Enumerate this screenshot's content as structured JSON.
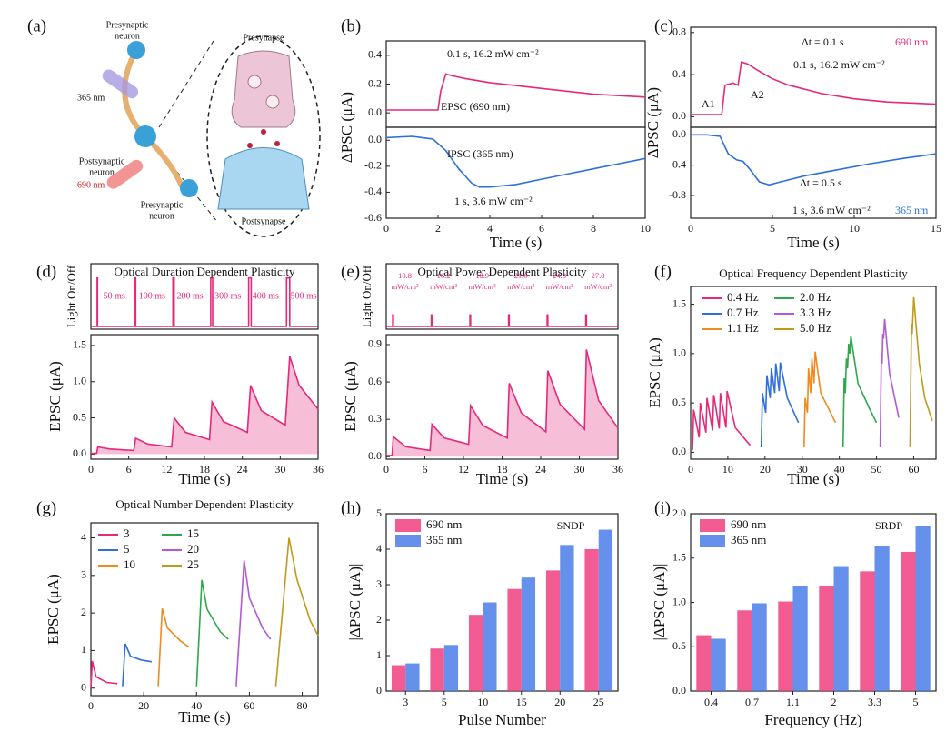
{
  "diagram": {
    "panel": "(a)",
    "labels": [
      "Presynaptic",
      "neuron",
      "365 nm",
      "Postsynaptic",
      "neuron",
      "690 nm",
      "Presynaptic",
      "neuron",
      "Presynapse",
      "Postsynapse"
    ]
  },
  "chart_data": [
    {
      "type": "line",
      "panel": "(b)",
      "y_label": "ΔPSC (μA)",
      "xlim": [
        0,
        10
      ],
      "ylim": [
        -0.1,
        0.5
      ],
      "yticks": [
        {
          "value": 0,
          "label": "0.0"
        },
        0.2,
        0.4
      ],
      "annotations": [
        "0.1 s, 16.2 mW cm⁻²",
        "EPSC (690 nm)"
      ],
      "series": [
        {
          "color": "#e6287a",
          "x": [
            0,
            1,
            2,
            2.1,
            2.3,
            2.5,
            3,
            4,
            5,
            6,
            7,
            8,
            9,
            10
          ],
          "values": [
            0.02,
            0.02,
            0.02,
            0.15,
            0.27,
            0.26,
            0.24,
            0.21,
            0.19,
            0.17,
            0.15,
            0.13,
            0.12,
            0.11
          ]
        }
      ]
    },
    {
      "type": "line",
      "x_label": "Time (s)",
      "xlim": [
        0,
        10
      ],
      "ylim": [
        -0.6,
        0.1
      ],
      "xticks": [
        0,
        2,
        4,
        6,
        8,
        10
      ],
      "yticks": [
        {
          "value": 0,
          "label": "0.0"
        },
        -0.2,
        -0.4,
        -0.6
      ],
      "annotations": [
        "IPSC (365 nm)",
        "1 s, 3.6 mW cm⁻²"
      ],
      "series": [
        {
          "color": "#2f6fdc",
          "x": [
            0,
            1,
            1.8,
            2.3,
            2.8,
            3.3,
            3.6,
            4,
            5,
            6,
            7,
            8,
            9,
            10
          ],
          "values": [
            0.02,
            0.03,
            0.01,
            -0.08,
            -0.22,
            -0.33,
            -0.36,
            -0.36,
            -0.34,
            -0.3,
            -0.26,
            -0.22,
            -0.18,
            -0.14
          ]
        }
      ]
    },
    {
      "type": "line",
      "panel": "(c)",
      "y_label": "ΔPSC (μA)",
      "xlim": [
        0,
        15
      ],
      "ylim": [
        -0.1,
        0.85
      ],
      "yticks": [
        {
          "value": 0,
          "label": "0.0"
        },
        0.4,
        0.8
      ],
      "annotations": [
        "Δt = 0.1 s",
        "0.1 s, 16.2 mW cm⁻²",
        "690 nm",
        "A1",
        "A2"
      ],
      "series": [
        {
          "color": "#e6287a",
          "x": [
            0,
            1,
            1.9,
            2.1,
            2.6,
            2.9,
            3.1,
            3.5,
            4,
            5,
            6,
            8,
            10,
            12,
            15
          ],
          "values": [
            0.02,
            0.02,
            0.02,
            0.3,
            0.32,
            0.3,
            0.52,
            0.5,
            0.45,
            0.36,
            0.3,
            0.22,
            0.17,
            0.14,
            0.12
          ]
        }
      ]
    },
    {
      "type": "line",
      "x_label": "Time (s)",
      "xlim": [
        0,
        15
      ],
      "ylim": [
        -1.1,
        0.1
      ],
      "xticks": [
        0,
        5,
        10,
        15
      ],
      "yticks": [
        {
          "value": 0,
          "label": "0.0"
        },
        -0.4,
        -0.8
      ],
      "annotations": [
        "Δt = 0.5 s",
        "1 s, 3.6 mW cm⁻²",
        "365 nm"
      ],
      "series": [
        {
          "color": "#2f6fdc",
          "x": [
            0,
            1,
            1.8,
            2.3,
            2.8,
            3.2,
            3.6,
            4.2,
            4.8,
            5.5,
            7,
            9,
            11,
            13,
            15
          ],
          "values": [
            0,
            0,
            -0.02,
            -0.25,
            -0.33,
            -0.35,
            -0.45,
            -0.62,
            -0.66,
            -0.62,
            -0.54,
            -0.46,
            -0.38,
            -0.31,
            -0.25
          ]
        }
      ]
    },
    {
      "type": "line",
      "panel": "(d)",
      "title": "Optical Duration Dependent Plasticity",
      "y_label": "Light On/Off",
      "xlim": [
        0,
        36
      ],
      "ylim": [
        -0.05,
        1.1
      ],
      "annotations": [
        "50 ms",
        "100 ms",
        "200 ms",
        "300 ms",
        "400 ms",
        "500 ms"
      ],
      "series": [
        {
          "color": "#e6287a",
          "x": [
            0,
            1,
            1,
            1.05,
            1.05,
            7,
            7,
            7.1,
            7.1,
            13,
            13,
            13.2,
            13.2,
            19,
            19,
            19.3,
            19.3,
            25,
            25,
            25.4,
            25.4,
            31,
            31,
            31.5,
            31.5,
            36
          ],
          "values": [
            0,
            0,
            0.85,
            0.85,
            0,
            0,
            0.85,
            0.85,
            0,
            0,
            0.85,
            0.85,
            0,
            0,
            0.85,
            0.85,
            0,
            0,
            0.85,
            0.85,
            0,
            0,
            0.85,
            0.85,
            0,
            0
          ]
        }
      ]
    },
    {
      "type": "line",
      "area": true,
      "x_label": "Time (s)",
      "y_label": "EPSC (μA)",
      "xlim": [
        0,
        36
      ],
      "ylim": [
        -0.07,
        1.65
      ],
      "xticks": [
        0,
        6,
        12,
        18,
        24,
        30,
        36
      ],
      "yticks": [
        {
          "value": 0,
          "label": "0.0"
        },
        0.5,
        {
          "value": 1,
          "label": "1.0"
        },
        1.5
      ],
      "series": [
        {
          "color": "#e6287a",
          "x": [
            0,
            0.9,
            1.1,
            3,
            6.8,
            7.1,
            9,
            12.8,
            13.2,
            15,
            18.8,
            19.2,
            21,
            24.8,
            25.3,
            27,
            30.8,
            31.5,
            33,
            36
          ],
          "values": [
            0.01,
            0.01,
            0.1,
            0.07,
            0.05,
            0.22,
            0.14,
            0.1,
            0.5,
            0.3,
            0.2,
            0.72,
            0.45,
            0.3,
            0.95,
            0.6,
            0.4,
            1.35,
            0.95,
            0.62
          ]
        }
      ]
    },
    {
      "type": "line",
      "panel": "(e)",
      "title": "Optical Power Dependent Plasticity",
      "y_label": "Light On/Off",
      "xlim": [
        0,
        36
      ],
      "ylim": [
        -0.05,
        1.1
      ],
      "annotations": [
        "10.8",
        "mW/cm²",
        "16.2",
        "mW/cm²",
        "18.9",
        "mW/cm²",
        "21.6",
        "mW/cm²",
        "24.3",
        "mW/cm²",
        "27.0",
        "mW/cm²"
      ],
      "series": [
        {
          "color": "#e6287a",
          "x": [
            0,
            1,
            1,
            1.1,
            1.1,
            7,
            7,
            7.1,
            7.1,
            13,
            13,
            13.1,
            13.1,
            19,
            19,
            19.1,
            19.1,
            25,
            25,
            25.1,
            25.1,
            31,
            31,
            31.1,
            31.1,
            36
          ],
          "values": [
            0,
            0,
            0.2,
            0.2,
            0,
            0,
            0.2,
            0.2,
            0,
            0,
            0.2,
            0.2,
            0,
            0,
            0.2,
            0.2,
            0,
            0,
            0.2,
            0.2,
            0,
            0,
            0.2,
            0.2,
            0,
            0
          ]
        }
      ]
    },
    {
      "type": "line",
      "area": true,
      "x_label": "Time (s)",
      "y_label": "EPSC (μA)",
      "xlim": [
        0,
        36
      ],
      "ylim": [
        -0.02,
        0.98
      ],
      "xticks": [
        0,
        6,
        12,
        18,
        24,
        30,
        36
      ],
      "yticks": [
        {
          "value": 0,
          "label": "0.0"
        },
        0.3,
        0.6,
        0.9
      ],
      "series": [
        {
          "color": "#e6287a",
          "x": [
            0,
            0.9,
            1.1,
            3,
            6.8,
            7.1,
            9,
            12.8,
            13.1,
            15,
            18.8,
            19.1,
            21,
            24.8,
            25.1,
            27,
            30.8,
            31.1,
            33,
            36
          ],
          "values": [
            0.01,
            0.01,
            0.16,
            0.08,
            0.05,
            0.26,
            0.15,
            0.1,
            0.41,
            0.25,
            0.15,
            0.59,
            0.35,
            0.2,
            0.69,
            0.42,
            0.22,
            0.86,
            0.45,
            0.23
          ]
        }
      ]
    },
    {
      "type": "line",
      "panel": "(f)",
      "title": "Optical Frequency Dependent Plasticity",
      "x_label": "Time (s)",
      "y_label": "EPSC (μA)",
      "xlim": [
        0,
        66
      ],
      "ylim": [
        -0.07,
        1.68
      ],
      "xticks": [
        0,
        10,
        20,
        30,
        40,
        50,
        60
      ],
      "yticks": [
        {
          "value": 0,
          "label": "0.0"
        },
        0.5,
        {
          "value": 1,
          "label": "1.0"
        },
        1.5
      ],
      "series": [
        {
          "name": "0.4 Hz",
          "color": "#e6287a",
          "x": [
            0.5,
            0.8,
            2.3,
            2.6,
            4.1,
            4.4,
            5.9,
            6.2,
            7.7,
            8,
            9.5,
            9.8,
            12,
            16
          ],
          "values": [
            0.02,
            0.43,
            0.15,
            0.5,
            0.2,
            0.55,
            0.22,
            0.58,
            0.24,
            0.6,
            0.25,
            0.62,
            0.25,
            0.07
          ]
        },
        {
          "name": "0.7 Hz",
          "color": "#2f6fdc",
          "x": [
            19,
            19.3,
            20.2,
            20.5,
            21.4,
            21.7,
            22.6,
            22.9,
            23.8,
            24.1,
            26,
            29
          ],
          "values": [
            0.05,
            0.6,
            0.4,
            0.78,
            0.55,
            0.85,
            0.6,
            0.9,
            0.62,
            0.91,
            0.55,
            0.3
          ]
        },
        {
          "name": "1.1 Hz",
          "color": "#f08a1c",
          "x": [
            30.5,
            30.8,
            31.4,
            31.7,
            32.3,
            32.6,
            33.2,
            33.5,
            35,
            39
          ],
          "values": [
            0.05,
            0.55,
            0.4,
            0.85,
            0.6,
            0.95,
            0.7,
            1.02,
            0.6,
            0.3
          ]
        },
        {
          "name": "2.0 Hz",
          "color": "#2ea84a",
          "x": [
            41,
            41.3,
            41.6,
            41.9,
            42.2,
            42.5,
            42.8,
            43.1,
            45,
            48,
            50
          ],
          "values": [
            0.05,
            0.75,
            0.6,
            0.95,
            0.85,
            1.1,
            1,
            1.18,
            0.7,
            0.45,
            0.3
          ]
        },
        {
          "name": "3.3 Hz",
          "color": "#b05ad6",
          "x": [
            51,
            51.3,
            51.5,
            51.7,
            51.9,
            52.2,
            53.5,
            56
          ],
          "values": [
            0.05,
            1,
            0.9,
            1.2,
            1.15,
            1.35,
            0.8,
            0.35
          ]
        },
        {
          "name": "5.0 Hz",
          "color": "#c19a1a",
          "x": [
            59,
            59.4,
            59.6,
            60,
            61.5,
            63,
            65
          ],
          "values": [
            0.05,
            1.3,
            1.2,
            1.57,
            0.9,
            0.55,
            0.32
          ]
        }
      ]
    },
    {
      "type": "line",
      "panel": "(g)",
      "title": "Optical Number Dependent Plasticity",
      "x_label": "Time (s)",
      "y_label": "EPSC (μA)",
      "xlim": [
        0,
        86
      ],
      "ylim": [
        -0.2,
        4.4
      ],
      "xticks": [
        0,
        20,
        40,
        60,
        80
      ],
      "yticks": [
        0,
        1,
        2,
        3,
        4
      ],
      "series": [
        {
          "name": "3",
          "color": "#e6287a",
          "x": [
            0,
            0.5,
            2,
            6,
            10
          ],
          "values": [
            0,
            0.72,
            0.3,
            0.15,
            0.12
          ]
        },
        {
          "name": "5",
          "color": "#2f6fdc",
          "x": [
            12,
            13,
            15,
            19,
            23
          ],
          "values": [
            0.05,
            1.18,
            0.85,
            0.75,
            0.7
          ]
        },
        {
          "name": "10",
          "color": "#f08a1c",
          "x": [
            25.5,
            27,
            29,
            34,
            37
          ],
          "values": [
            0.05,
            2.12,
            1.6,
            1.25,
            1.1
          ]
        },
        {
          "name": "15",
          "color": "#2ea84a",
          "x": [
            40,
            42,
            44,
            49,
            52
          ],
          "values": [
            0.05,
            2.88,
            2.1,
            1.5,
            1.3
          ]
        },
        {
          "name": "20",
          "color": "#b05ad6",
          "x": [
            55,
            58,
            60,
            65,
            68
          ],
          "values": [
            0.05,
            3.4,
            2.4,
            1.6,
            1.3
          ]
        },
        {
          "name": "25",
          "color": "#c19a1a",
          "x": [
            70,
            75,
            78,
            83,
            86
          ],
          "values": [
            0.05,
            4,
            2.9,
            1.8,
            1.4
          ]
        }
      ]
    },
    {
      "type": "bar",
      "panel": "(h)",
      "x_label": "Pulse Number",
      "y_label": "|ΔPSC (μA)|",
      "ylim": [
        0,
        5
      ],
      "yticks": [
        0,
        1,
        2,
        3,
        4,
        5
      ],
      "annotations": [
        "SNDP"
      ],
      "categories": [
        "3",
        "5",
        "10",
        "15",
        "20",
        "25"
      ],
      "series": [
        {
          "name": "690 nm",
          "color": "#f0407f",
          "values": [
            0.73,
            1.2,
            2.15,
            2.88,
            3.4,
            4
          ]
        },
        {
          "name": "365 nm",
          "color": "#4a7de8",
          "values": [
            0.78,
            1.3,
            2.5,
            3.2,
            4.12,
            4.55
          ]
        }
      ]
    },
    {
      "type": "bar",
      "panel": "(i)",
      "x_label": "Frequency (Hz)",
      "y_label": "|ΔPSC (μA)|",
      "ylim": [
        0,
        2
      ],
      "yticks": [
        {
          "value": 0,
          "label": "0.0"
        },
        0.5,
        {
          "value": 1,
          "label": "1.0"
        },
        1.5,
        {
          "value": 2,
          "label": "2.0"
        }
      ],
      "annotations": [
        "SRDP"
      ],
      "categories": [
        "0.4",
        "0.7",
        "1.1",
        "2",
        "3.3",
        "5"
      ],
      "series": [
        {
          "name": "690 nm",
          "color": "#f0407f",
          "values": [
            0.63,
            0.91,
            1.01,
            1.19,
            1.35,
            1.57
          ]
        },
        {
          "name": "365 nm",
          "color": "#4a7de8",
          "values": [
            0.59,
            0.99,
            1.19,
            1.41,
            1.64,
            1.86
          ]
        }
      ]
    }
  ]
}
